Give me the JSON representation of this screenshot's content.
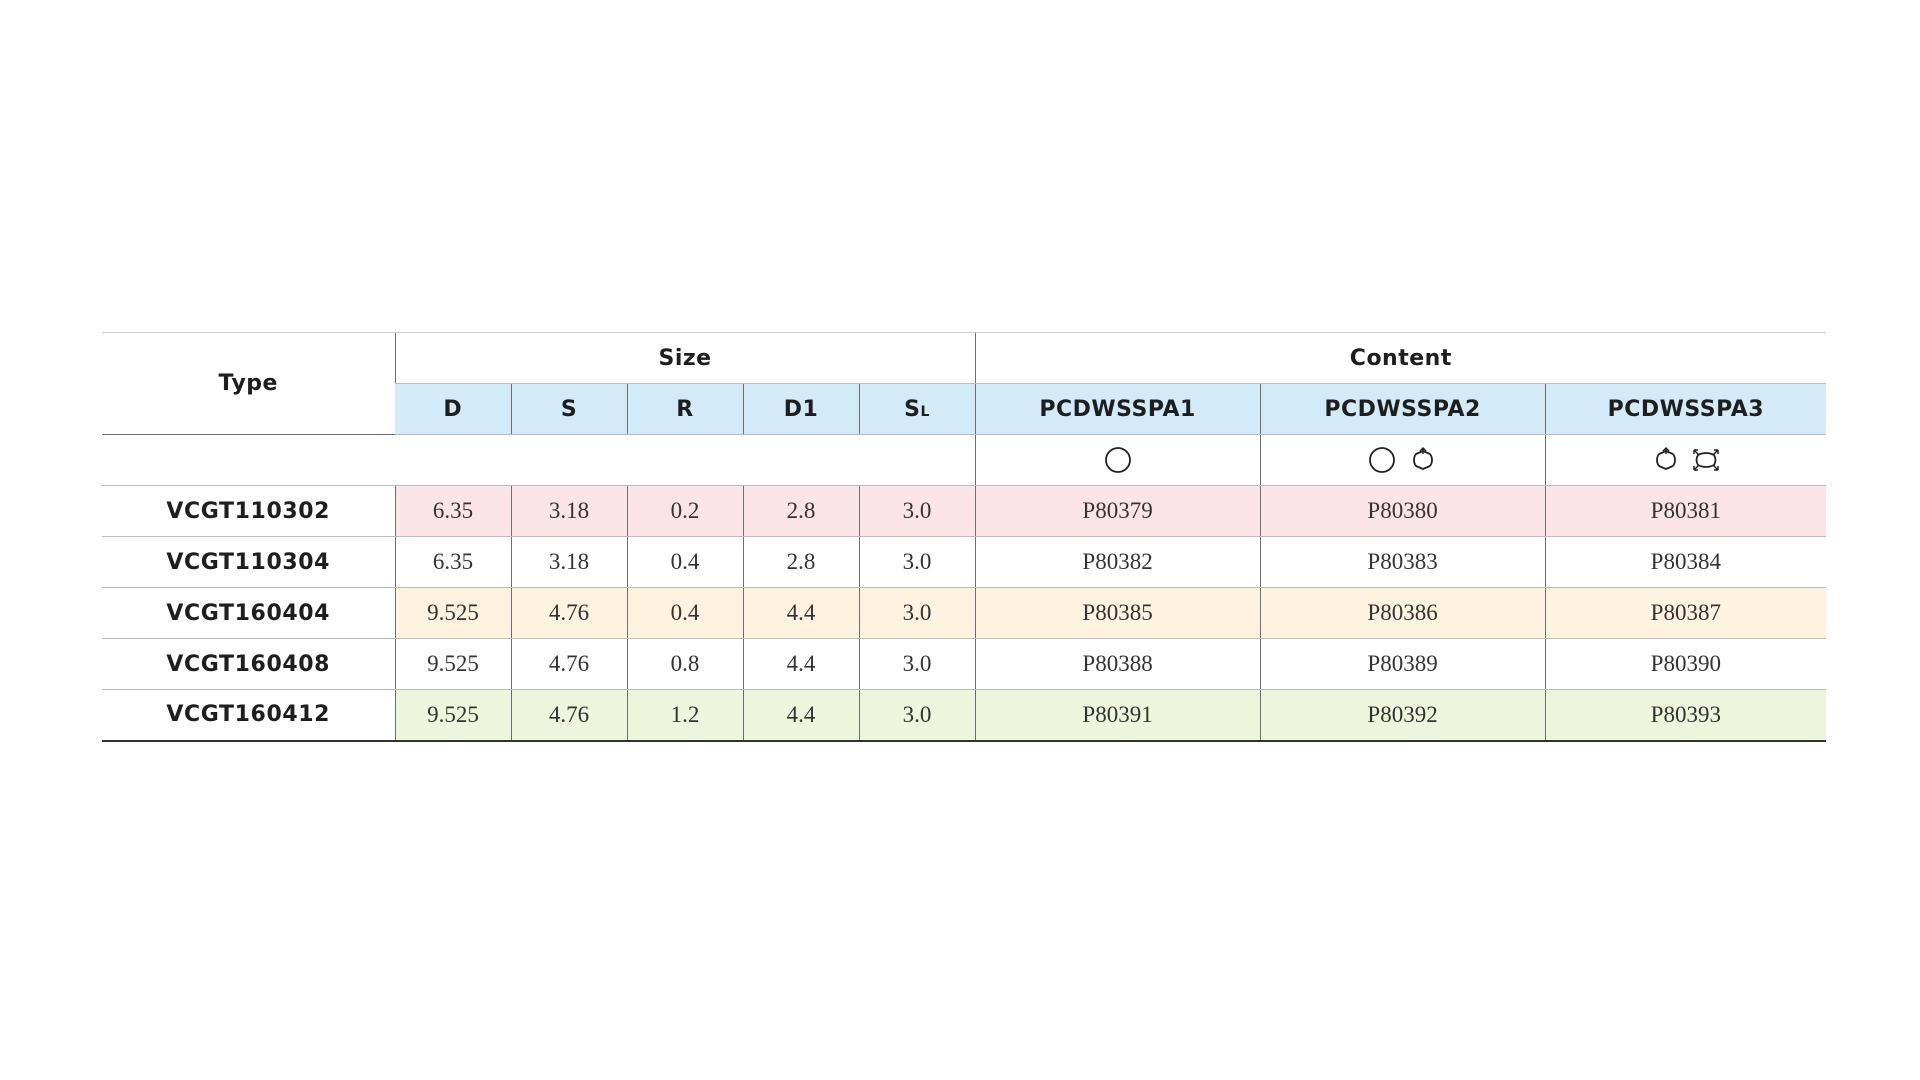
{
  "header": {
    "type_label": "Type",
    "size_label": "Size",
    "content_label": "Content",
    "size_columns": [
      {
        "label": "D",
        "sub": ""
      },
      {
        "label": "S",
        "sub": ""
      },
      {
        "label": "R",
        "sub": ""
      },
      {
        "label": "D1",
        "sub": ""
      },
      {
        "label": "S",
        "sub": "L"
      }
    ],
    "content_columns": [
      "PCDWSSPA1",
      "PCDWSSPA2",
      "PCDWSSPA3"
    ]
  },
  "icons": {
    "col1": [
      "circle-icon"
    ],
    "col2": [
      "circle-icon",
      "rotate-arrows-icon"
    ],
    "col3": [
      "rotate-arrows-icon",
      "expand-arrows-icon"
    ]
  },
  "rows": [
    {
      "type": "VCGT110302",
      "d": "6.35",
      "s": "3.18",
      "r": "0.2",
      "d1": "2.8",
      "sl": "3.0",
      "c1": "P80379",
      "c2": "P80380",
      "c3": "P80381",
      "color": "#fbe4e8"
    },
    {
      "type": "VCGT110304",
      "d": "6.35",
      "s": "3.18",
      "r": "0.4",
      "d1": "2.8",
      "sl": "3.0",
      "c1": "P80382",
      "c2": "P80383",
      "c3": "P80384",
      "color": "#ffffff"
    },
    {
      "type": "VCGT160404",
      "d": "9.525",
      "s": "4.76",
      "r": "0.4",
      "d1": "4.4",
      "sl": "3.0",
      "c1": "P80385",
      "c2": "P80386",
      "c3": "P80387",
      "color": "#fef3e1"
    },
    {
      "type": "VCGT160408",
      "d": "9.525",
      "s": "4.76",
      "r": "0.8",
      "d1": "4.4",
      "sl": "3.0",
      "c1": "P80388",
      "c2": "P80389",
      "c3": "P80390",
      "color": "#ffffff"
    },
    {
      "type": "VCGT160412",
      "d": "9.525",
      "s": "4.76",
      "r": "1.2",
      "d1": "4.4",
      "sl": "3.0",
      "c1": "P80391",
      "c2": "P80392",
      "c3": "P80393",
      "color": "#edf5dc"
    }
  ],
  "colors": {
    "header_blue": "#d3eaf8",
    "row_pink": "#fbe4e8",
    "row_orange": "#fef3e1",
    "row_green": "#edf5dc"
  }
}
